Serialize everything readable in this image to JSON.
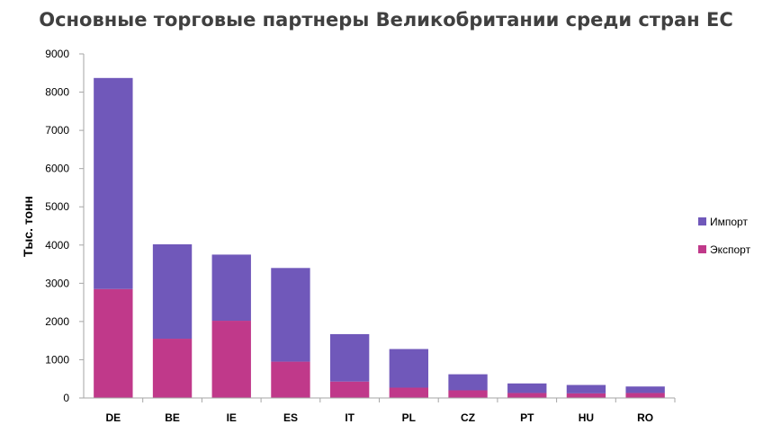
{
  "chart_data": {
    "type": "bar",
    "stacked": true,
    "title": "Основные торговые партнеры Великобритании среди стран ЕС",
    "xlabel": "",
    "ylabel": "Тыс. тонн",
    "ylim": [
      0,
      9000
    ],
    "yticks": [
      0,
      1000,
      2000,
      3000,
      4000,
      5000,
      6000,
      7000,
      8000,
      9000
    ],
    "grid": false,
    "legend_position": "right",
    "categories": [
      "DE",
      "BE",
      "IE",
      "ES",
      "IT",
      "PL",
      "CZ",
      "PT",
      "HU",
      "RO"
    ],
    "series": [
      {
        "name": "Экспорт",
        "color": "#c0398a",
        "values": [
          2850,
          1550,
          2020,
          950,
          430,
          270,
          200,
          130,
          120,
          130
        ]
      },
      {
        "name": "Импорт",
        "color": "#7058ba",
        "values": [
          5520,
          2470,
          1730,
          2450,
          1240,
          1010,
          420,
          250,
          220,
          170
        ]
      }
    ]
  }
}
